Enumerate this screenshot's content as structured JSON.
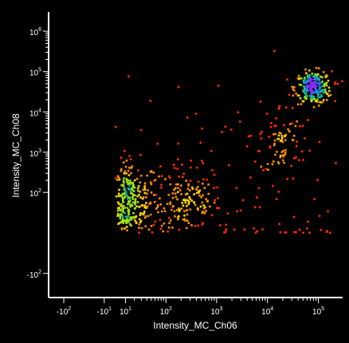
{
  "chart_data": {
    "type": "scatter",
    "title": "",
    "xlabel": "Intensity_MC_Ch06",
    "ylabel": "Intensity_MC_Ch08",
    "x_scale": "biexponential",
    "y_scale": "biexponential",
    "density_coloring": true,
    "background": "#000000",
    "color_scale": [
      "#ff2a00",
      "#ff8c00",
      "#ffd400",
      "#9adf1a",
      "#12b89a",
      "#2a7cff",
      "#8a2cff"
    ],
    "x_ticks": [
      {
        "base": "-10",
        "exp": "2"
      },
      {
        "base": "-10",
        "exp": "1"
      },
      {
        "base": "10",
        "exp": "1"
      },
      {
        "base": "10",
        "exp": "2"
      },
      {
        "base": "10",
        "exp": "3"
      },
      {
        "base": "10",
        "exp": "4"
      },
      {
        "base": "10",
        "exp": "5"
      }
    ],
    "y_ticks": [
      {
        "base": "-10",
        "exp": "2"
      },
      {
        "base": "10",
        "exp": "2"
      },
      {
        "base": "10",
        "exp": "3"
      },
      {
        "base": "10",
        "exp": "4"
      },
      {
        "base": "10",
        "exp": "5"
      },
      {
        "base": "10",
        "exp": "6"
      }
    ],
    "populations": [
      {
        "center": [
          15,
          60
        ],
        "x_spread_decades": 0.35,
        "y_spread_decades": 0.5,
        "count": 260
      },
      {
        "center": [
          250,
          55
        ],
        "x_spread_decades": 0.35,
        "y_spread_decades": 0.45,
        "count": 150
      },
      {
        "center": [
          80000,
          40000
        ],
        "x_spread_decades": 0.18,
        "y_spread_decades": 0.2,
        "count": 230
      },
      {
        "center": [
          18000,
          2000
        ],
        "x_spread_decades": 0.2,
        "y_spread_decades": 0.45,
        "count": 75
      },
      {
        "center": [
          2000,
          100
        ],
        "x_spread_decades": 1.3,
        "y_spread_decades": 1.5,
        "count": 110
      }
    ]
  }
}
